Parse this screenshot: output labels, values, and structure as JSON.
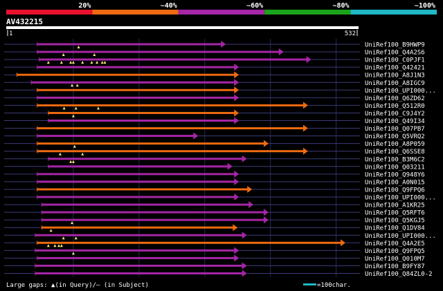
{
  "scale": {
    "segments": [
      {
        "label": "20%",
        "color": "#e8112d"
      },
      {
        "label": "~40%",
        "color": "#ee6a10"
      },
      {
        "label": "~60%",
        "color": "#a526a6"
      },
      {
        "label": "~80%",
        "color": "#1ba31b"
      },
      {
        "label": "~100%",
        "color": "#1fb8c4"
      }
    ]
  },
  "query": {
    "name": "AV432215",
    "start": "1",
    "end": "532",
    "length": 532
  },
  "colors": {
    "purple": "#a526a6",
    "orange": "#ee6a10",
    "gap": "#ffe680",
    "bg": "#000000",
    "grid": "#24285e",
    "connector": "#3c3c78"
  },
  "hits": [
    {
      "name": "UniRef100_B9HWP9",
      "color": "purple",
      "start": 45,
      "end": 330,
      "gaps": [
        108
      ]
    },
    {
      "name": "UniRef100_Q4A2S6",
      "color": "purple",
      "start": 45,
      "end": 418,
      "gaps": [
        85,
        132
      ]
    },
    {
      "name": "UniRef100_C0PJF1",
      "color": "purple",
      "start": 48,
      "end": 460,
      "gaps": [
        62,
        82,
        96,
        100,
        114,
        128,
        136,
        144,
        148
      ]
    },
    {
      "name": "UniRef100_Q42421",
      "color": "purple",
      "start": 45,
      "end": 350,
      "gaps": []
    },
    {
      "name": "UniRef100_A8J1N3",
      "color": "orange",
      "start": 14,
      "end": 350,
      "gaps": []
    },
    {
      "name": "UniRef100_A8IGC9",
      "color": "purple",
      "start": 36,
      "end": 350,
      "gaps": [
        98,
        106
      ]
    },
    {
      "name": "UniRef100_UPI000...",
      "color": "orange",
      "start": 45,
      "end": 350,
      "gaps": []
    },
    {
      "name": "UniRef100_Q6ZD62",
      "color": "purple",
      "start": 45,
      "end": 350,
      "gaps": []
    },
    {
      "name": "UniRef100_Q512R0",
      "color": "orange",
      "start": 45,
      "end": 455,
      "gaps": [
        86,
        104,
        138
      ]
    },
    {
      "name": "UniRef100_C9J4Y2",
      "color": "orange",
      "start": 62,
      "end": 350,
      "gaps": [
        100
      ]
    },
    {
      "name": "UniRef100_Q49I34",
      "color": "purple",
      "start": 62,
      "end": 350,
      "gaps": []
    },
    {
      "name": "UniRef100_Q07PB7",
      "color": "orange",
      "start": 45,
      "end": 455,
      "gaps": []
    },
    {
      "name": "UniRef100_Q5VRQ2",
      "color": "purple",
      "start": 45,
      "end": 288,
      "gaps": []
    },
    {
      "name": "UniRef100_A8P059",
      "color": "orange",
      "start": 45,
      "end": 395,
      "gaps": [
        102
      ]
    },
    {
      "name": "UniRef100_Q6SSE8",
      "color": "orange",
      "start": 45,
      "end": 455,
      "gaps": [
        80,
        114
      ]
    },
    {
      "name": "UniRef100_B3M6C2",
      "color": "purple",
      "start": 62,
      "end": 362,
      "gaps": [
        96,
        100
      ]
    },
    {
      "name": "UniRef100_Q03211",
      "color": "purple",
      "start": 62,
      "end": 340,
      "gaps": []
    },
    {
      "name": "UniRef100_Q948Y6",
      "color": "purple",
      "start": 45,
      "end": 350,
      "gaps": []
    },
    {
      "name": "UniRef100_A0N015",
      "color": "purple",
      "start": 45,
      "end": 350,
      "gaps": []
    },
    {
      "name": "UniRef100_Q9FPQ6",
      "color": "orange",
      "start": 45,
      "end": 370,
      "gaps": []
    },
    {
      "name": "UniRef100_UPI000...",
      "color": "purple",
      "start": 45,
      "end": 350,
      "gaps": []
    },
    {
      "name": "UniRef100_A1KR25",
      "color": "purple",
      "start": 52,
      "end": 372,
      "gaps": []
    },
    {
      "name": "UniRef100_Q5RFT6",
      "color": "purple",
      "start": 52,
      "end": 395,
      "gaps": []
    },
    {
      "name": "UniRef100_Q5KGJ5",
      "color": "purple",
      "start": 52,
      "end": 395,
      "gaps": [
        98
      ]
    },
    {
      "name": "UniRef100_Q1DV84",
      "color": "orange",
      "start": 52,
      "end": 348,
      "gaps": [
        66
      ]
    },
    {
      "name": "UniRef100_UPI000...",
      "color": "purple",
      "start": 42,
      "end": 362,
      "gaps": [
        85,
        104
      ]
    },
    {
      "name": "UniRef100_Q4A2E5",
      "color": "orange",
      "start": 45,
      "end": 512,
      "gaps": [
        62,
        72,
        78,
        82
      ]
    },
    {
      "name": "UniRef100_Q9FPQ5",
      "color": "purple",
      "start": 42,
      "end": 350,
      "gaps": [
        100
      ]
    },
    {
      "name": "UniRef100_Q010M7",
      "color": "purple",
      "start": 45,
      "end": 350,
      "gaps": []
    },
    {
      "name": "UniRef100_B9FY87",
      "color": "purple",
      "start": 42,
      "end": 362,
      "gaps": []
    },
    {
      "name": "UniRef100_Q84ZL0-2",
      "color": "purple",
      "start": 42,
      "end": 362,
      "gaps": []
    }
  ],
  "legend": {
    "gaps_text": "Large gaps: ▲(in Query)/‒ (in Subject)",
    "scale_text": "=100char.",
    "scale_color": "#1fb8c4"
  }
}
